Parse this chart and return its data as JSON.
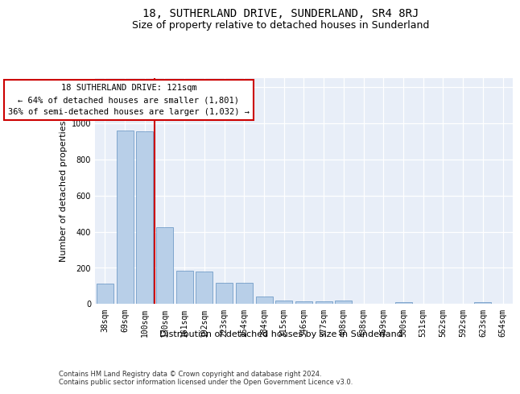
{
  "title": "18, SUTHERLAND DRIVE, SUNDERLAND, SR4 8RJ",
  "subtitle": "Size of property relative to detached houses in Sunderland",
  "xlabel": "Distribution of detached houses by size in Sunderland",
  "ylabel": "Number of detached properties",
  "categories": [
    "38sqm",
    "69sqm",
    "100sqm",
    "130sqm",
    "161sqm",
    "192sqm",
    "223sqm",
    "254sqm",
    "284sqm",
    "315sqm",
    "346sqm",
    "377sqm",
    "408sqm",
    "438sqm",
    "469sqm",
    "500sqm",
    "531sqm",
    "562sqm",
    "592sqm",
    "623sqm",
    "654sqm"
  ],
  "values": [
    110,
    960,
    955,
    425,
    185,
    180,
    115,
    115,
    40,
    20,
    15,
    15,
    18,
    0,
    0,
    8,
    0,
    0,
    0,
    8,
    0
  ],
  "bar_color": "#b8cfe8",
  "bar_edge_color": "#6090c0",
  "vline_color": "#cc0000",
  "vline_pos": 2.5,
  "annotation_text": "18 SUTHERLAND DRIVE: 121sqm\n← 64% of detached houses are smaller (1,801)\n36% of semi-detached houses are larger (1,032) →",
  "annotation_box_color": "#ffffff",
  "annotation_box_edge": "#cc0000",
  "ylim": [
    0,
    1250
  ],
  "yticks": [
    0,
    200,
    400,
    600,
    800,
    1000,
    1200
  ],
  "footer": "Contains HM Land Registry data © Crown copyright and database right 2024.\nContains public sector information licensed under the Open Government Licence v3.0.",
  "bg_color": "#e8eef8",
  "grid_color": "#ffffff",
  "title_fontsize": 10,
  "subtitle_fontsize": 9,
  "axis_label_fontsize": 8,
  "tick_fontsize": 7,
  "footer_fontsize": 6,
  "annot_fontsize": 7.5
}
